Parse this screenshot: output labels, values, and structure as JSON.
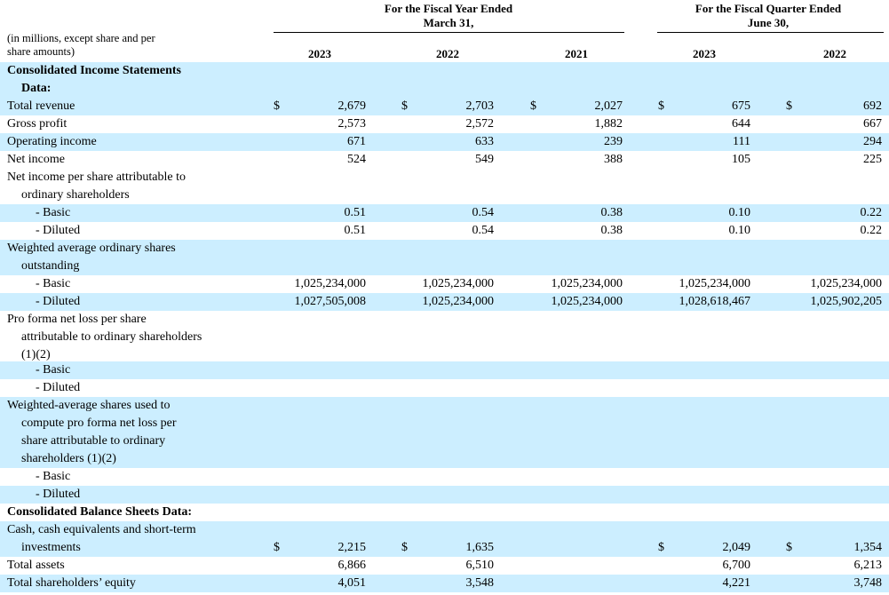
{
  "header": {
    "fiscal_year": [
      "For the Fiscal Year Ended",
      "March 31,"
    ],
    "fiscal_quarter": [
      "For the Fiscal Quarter Ended",
      "June 30,"
    ],
    "units_note": [
      "(in millions, except share and per",
      "share amounts)"
    ],
    "years": [
      "2023",
      "2022",
      "2021",
      "2023",
      "2022"
    ]
  },
  "rows": [
    {
      "label": "Consolidated Income Statements",
      "bold": true,
      "indent": 0,
      "shade": true,
      "vals": [
        "",
        "",
        "",
        "",
        ""
      ],
      "dollar": false
    },
    {
      "label": "Data:",
      "bold": true,
      "indent": 1,
      "shade": true,
      "vals": [
        "",
        "",
        "",
        "",
        ""
      ],
      "dollar": false
    },
    {
      "label": "Total revenue",
      "bold": false,
      "indent": 0,
      "shade": true,
      "vals": [
        "2,679",
        "2,703",
        "2,027",
        "675",
        "692"
      ],
      "dollar": true
    },
    {
      "label": "Gross profit",
      "bold": false,
      "indent": 0,
      "shade": false,
      "vals": [
        "2,573",
        "2,572",
        "1,882",
        "644",
        "667"
      ],
      "dollar": false
    },
    {
      "label": "Operating income",
      "bold": false,
      "indent": 0,
      "shade": true,
      "vals": [
        "671",
        "633",
        "239",
        "111",
        "294"
      ],
      "dollar": false
    },
    {
      "label": "Net income",
      "bold": false,
      "indent": 0,
      "shade": false,
      "vals": [
        "524",
        "549",
        "388",
        "105",
        "225"
      ],
      "dollar": false
    },
    {
      "label": "Net income per share attributable to",
      "bold": false,
      "indent": 0,
      "shade": false,
      "vals": [
        "",
        "",
        "",
        "",
        ""
      ],
      "dollar": false
    },
    {
      "label": "ordinary shareholders",
      "bold": false,
      "indent": 1,
      "shade": false,
      "vals": [
        "",
        "",
        "",
        "",
        ""
      ],
      "dollar": false
    },
    {
      "label": "- Basic",
      "bold": false,
      "indent": 2,
      "shade": true,
      "vals": [
        "0.51",
        "0.54",
        "0.38",
        "0.10",
        "0.22"
      ],
      "dollar": false
    },
    {
      "label": "- Diluted",
      "bold": false,
      "indent": 2,
      "shade": false,
      "vals": [
        "0.51",
        "0.54",
        "0.38",
        "0.10",
        "0.22"
      ],
      "dollar": false
    },
    {
      "label": "Weighted average ordinary shares",
      "bold": false,
      "indent": 0,
      "shade": true,
      "vals": [
        "",
        "",
        "",
        "",
        ""
      ],
      "dollar": false
    },
    {
      "label": "outstanding",
      "bold": false,
      "indent": 1,
      "shade": true,
      "vals": [
        "",
        "",
        "",
        "",
        ""
      ],
      "dollar": false
    },
    {
      "label": "- Basic",
      "bold": false,
      "indent": 2,
      "shade": false,
      "vals": [
        "1,025,234,000",
        "1,025,234,000",
        "1,025,234,000",
        "1,025,234,000",
        "1,025,234,000"
      ],
      "dollar": false
    },
    {
      "label": "- Diluted",
      "bold": false,
      "indent": 2,
      "shade": true,
      "vals": [
        "1,027,505,008",
        "1,025,234,000",
        "1,025,234,000",
        "1,028,618,467",
        "1,025,902,205"
      ],
      "dollar": false
    },
    {
      "label": "Pro forma net loss per share",
      "bold": false,
      "indent": 0,
      "shade": false,
      "vals": [
        "",
        "",
        "",
        "",
        ""
      ],
      "dollar": false
    },
    {
      "label": "attributable to ordinary shareholders",
      "bold": false,
      "indent": 1,
      "shade": false,
      "vals": [
        "",
        "",
        "",
        "",
        ""
      ],
      "dollar": false
    },
    {
      "label": "(1)(2)",
      "bold": false,
      "indent": 1,
      "shade": false,
      "vals": [
        "",
        "",
        "",
        "",
        ""
      ],
      "dollar": false
    },
    {
      "label": "- Basic",
      "bold": false,
      "indent": 2,
      "shade": true,
      "vals": [
        "",
        "",
        "",
        "",
        ""
      ],
      "dollar": false
    },
    {
      "label": "- Diluted",
      "bold": false,
      "indent": 2,
      "shade": false,
      "vals": [
        "",
        "",
        "",
        "",
        ""
      ],
      "dollar": false
    },
    {
      "label": "Weighted-average shares used to",
      "bold": false,
      "indent": 0,
      "shade": true,
      "vals": [
        "",
        "",
        "",
        "",
        ""
      ],
      "dollar": false
    },
    {
      "label": "compute pro forma net loss per",
      "bold": false,
      "indent": 1,
      "shade": true,
      "vals": [
        "",
        "",
        "",
        "",
        ""
      ],
      "dollar": false
    },
    {
      "label": "share attributable to ordinary",
      "bold": false,
      "indent": 1,
      "shade": true,
      "vals": [
        "",
        "",
        "",
        "",
        ""
      ],
      "dollar": false
    },
    {
      "label": "shareholders (1)(2)",
      "bold": false,
      "indent": 1,
      "shade": true,
      "vals": [
        "",
        "",
        "",
        "",
        ""
      ],
      "dollar": false
    },
    {
      "label": "- Basic",
      "bold": false,
      "indent": 2,
      "shade": false,
      "vals": [
        "",
        "",
        "",
        "",
        ""
      ],
      "dollar": false
    },
    {
      "label": "- Diluted",
      "bold": false,
      "indent": 2,
      "shade": true,
      "vals": [
        "",
        "",
        "",
        "",
        ""
      ],
      "dollar": false
    },
    {
      "label": "Consolidated Balance Sheets Data:",
      "bold": true,
      "indent": 0,
      "shade": false,
      "vals": [
        "",
        "",
        "",
        "",
        ""
      ],
      "dollar": false
    },
    {
      "label": "Cash, cash equivalents and short-term",
      "bold": false,
      "indent": 0,
      "shade": true,
      "vals": [
        "",
        "",
        "",
        "",
        ""
      ],
      "dollar": false
    },
    {
      "label": "investments",
      "bold": false,
      "indent": 1,
      "shade": true,
      "vals": [
        "2,215",
        "1,635",
        "",
        "2,049",
        "1,354"
      ],
      "dollar": true
    },
    {
      "label": "Total assets",
      "bold": false,
      "indent": 0,
      "shade": false,
      "vals": [
        "6,866",
        "6,510",
        "",
        "6,700",
        "6,213"
      ],
      "dollar": false
    },
    {
      "label": "Total shareholders’ equity",
      "bold": false,
      "indent": 0,
      "shade": true,
      "vals": [
        "4,051",
        "3,548",
        "",
        "4,221",
        "3,748"
      ],
      "dollar": false
    }
  ],
  "dollar_sign": "$"
}
